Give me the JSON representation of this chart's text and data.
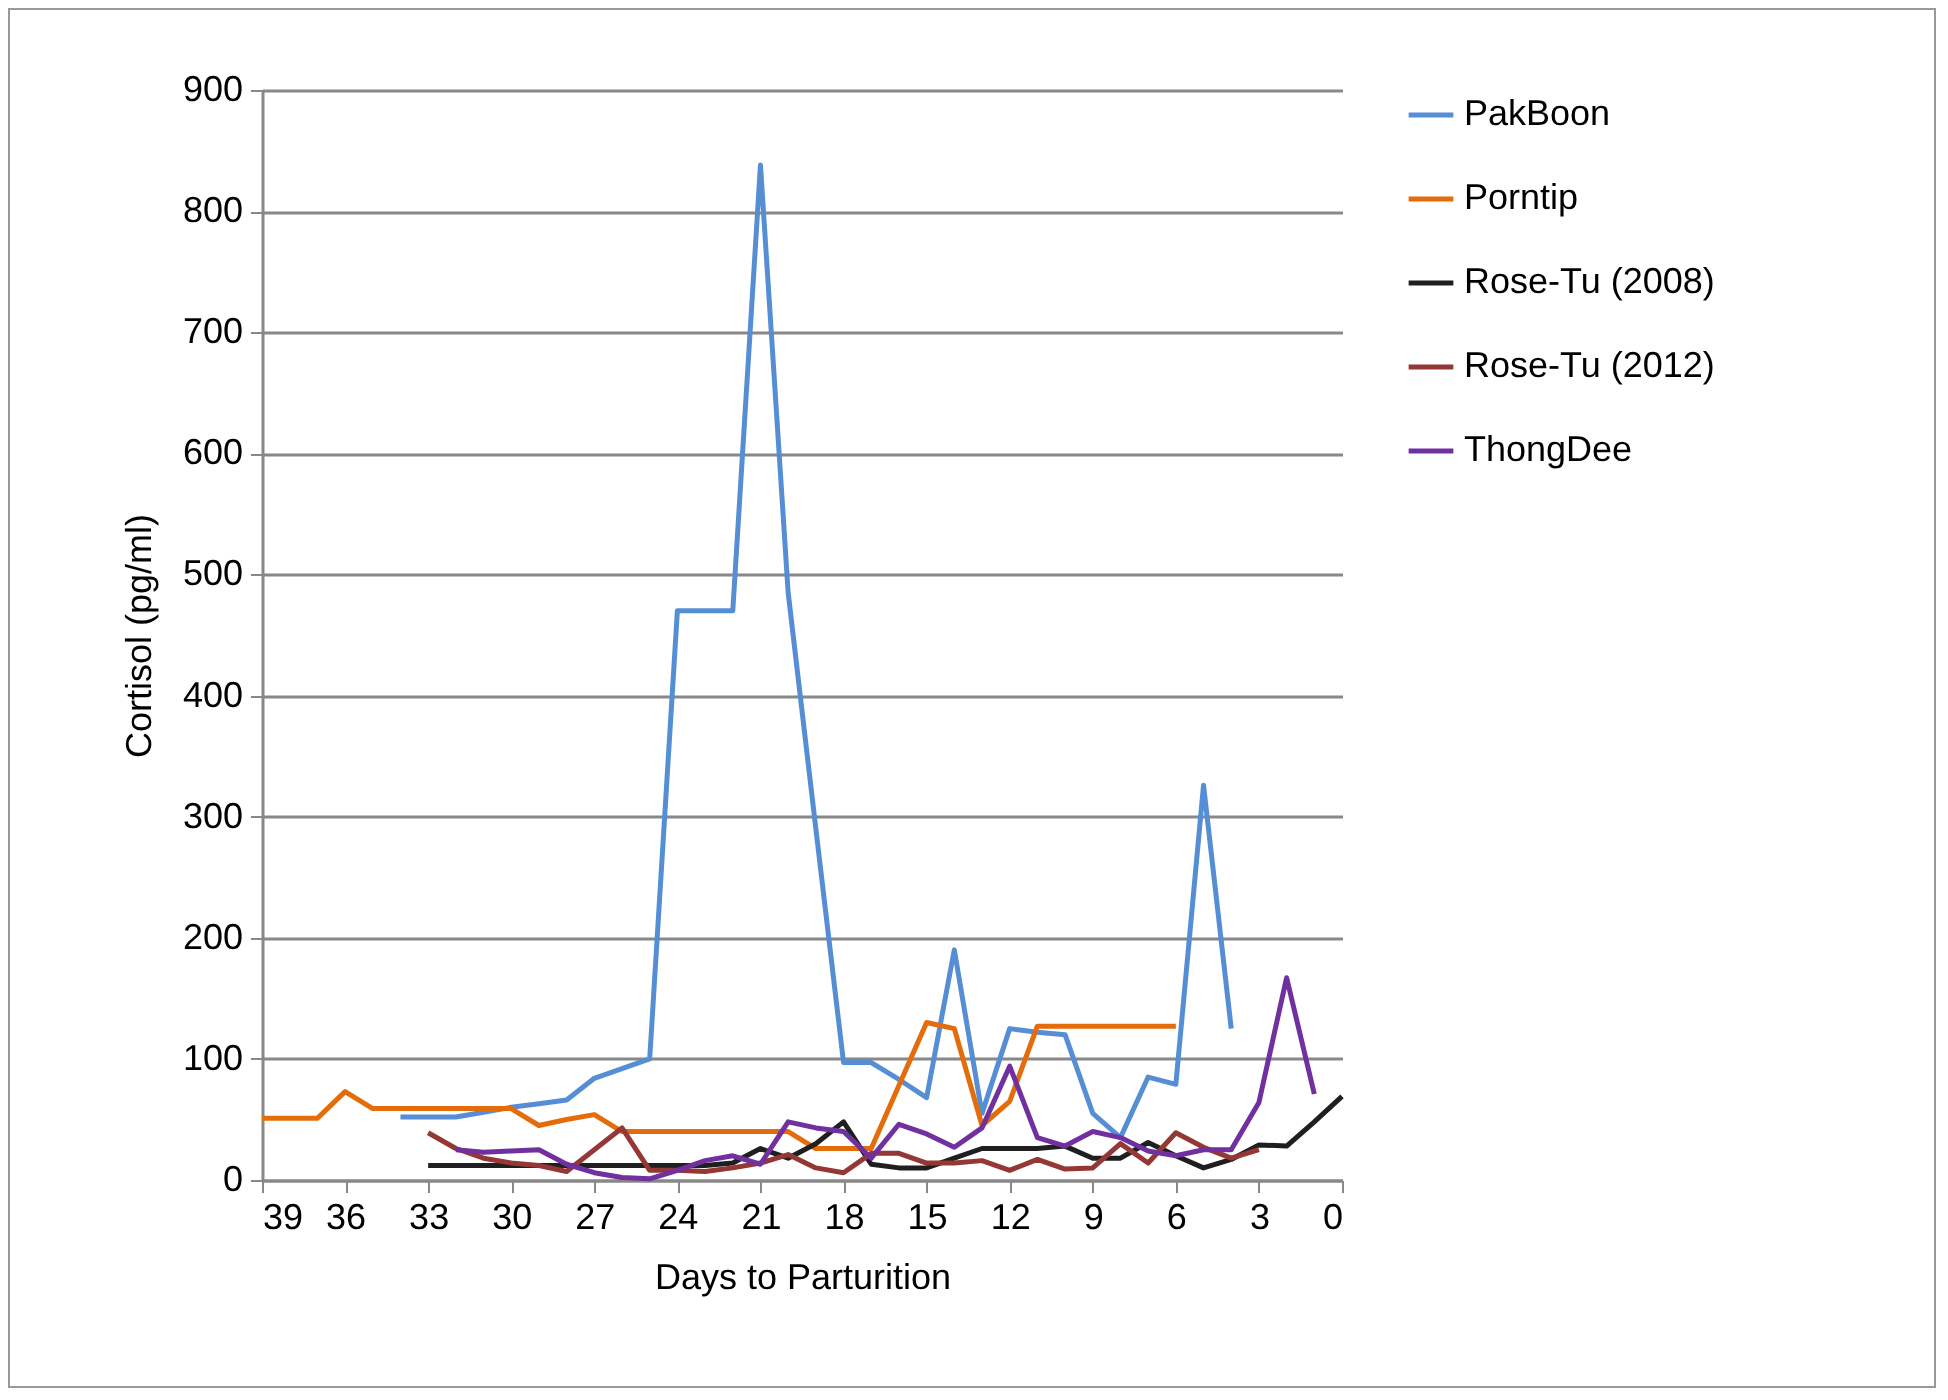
{
  "chart_data": {
    "type": "line",
    "xlabel": "Days to Parturition",
    "ylabel": "Cortisol (pg/ml)",
    "xlim": [
      39,
      0
    ],
    "xticks": [
      39,
      36,
      33,
      30,
      27,
      24,
      21,
      18,
      15,
      12,
      9,
      6,
      3,
      0
    ],
    "ylim": [
      0,
      900
    ],
    "yticks": [
      0,
      100,
      200,
      300,
      400,
      500,
      600,
      700,
      800,
      900
    ],
    "grid": "y",
    "legend": "right",
    "marker": "none",
    "line_style": "solid",
    "series": [
      {
        "name": "PakBoon",
        "color": "#558ed5",
        "x": [
          34,
          33,
          32,
          31,
          30,
          29,
          28,
          27,
          26,
          25,
          24,
          23,
          22,
          21,
          20,
          19,
          18,
          17,
          16,
          15,
          14,
          13,
          12,
          11,
          10,
          9,
          8,
          7,
          6,
          5,
          4
        ],
        "values": [
          52,
          52,
          52,
          56,
          60,
          63,
          66,
          84,
          92,
          100,
          470,
          470,
          470,
          838,
          485,
          290,
          97,
          97,
          83,
          68,
          190,
          55,
          125,
          122,
          120,
          55,
          35,
          85,
          79,
          326,
          125
        ]
      },
      {
        "name": "Porntip",
        "color": "#e46c0a",
        "x": [
          39,
          38,
          37,
          36,
          35,
          34,
          33,
          32,
          31,
          30,
          29,
          28,
          27,
          26,
          25,
          24,
          23,
          22,
          21,
          20,
          19,
          18,
          17,
          16,
          15,
          14,
          13,
          12,
          11,
          10,
          9,
          8,
          7,
          6
        ],
        "values": [
          51,
          51,
          51,
          73,
          59,
          59,
          59,
          59,
          59,
          59,
          45,
          50,
          54,
          40,
          40,
          40,
          40,
          40,
          40,
          40,
          26,
          26,
          26,
          78,
          130,
          125,
          45,
          65,
          127,
          127,
          127,
          127,
          127,
          127
        ]
      },
      {
        "name": "Rose-Tu (2008)",
        "color": "#1f1f1f",
        "x": [
          33,
          32,
          31,
          30,
          29,
          28,
          27,
          26,
          25,
          24,
          23,
          22,
          21,
          20,
          19,
          18,
          17,
          16,
          15,
          14,
          13,
          12,
          11,
          10,
          9,
          8,
          7,
          6,
          5,
          4,
          3,
          2,
          1,
          0
        ],
        "values": [
          12,
          12,
          12,
          12,
          12,
          12,
          12,
          12,
          12,
          12,
          12,
          14,
          26,
          18,
          30,
          48,
          13,
          10,
          10,
          18,
          26,
          26,
          26,
          28,
          18,
          18,
          31,
          20,
          10,
          17,
          29,
          28,
          48,
          69
        ]
      },
      {
        "name": "Rose-Tu (2012)",
        "color": "#953735",
        "x": [
          33,
          32,
          31,
          30,
          29,
          28,
          27,
          26,
          25,
          24,
          23,
          22,
          21,
          20,
          19,
          18,
          17,
          16,
          15,
          14,
          13,
          12,
          11,
          10,
          9,
          8,
          7,
          6,
          5,
          4,
          3
        ],
        "values": [
          39,
          26,
          18,
          14,
          12,
          7,
          25,
          43,
          8,
          8,
          7,
          10,
          14,
          21,
          10,
          6,
          22,
          22,
          14,
          14,
          16,
          8,
          17,
          9,
          10,
          30,
          14,
          39,
          27,
          18,
          25
        ]
      },
      {
        "name": "ThongDee",
        "color": "#7030a0",
        "x": [
          32,
          31,
          30,
          29,
          28,
          27,
          26,
          25,
          24,
          23,
          22,
          21,
          20,
          19,
          18,
          17,
          16,
          15,
          14,
          13,
          12,
          11,
          10,
          9,
          8,
          7,
          6,
          5,
          4,
          3,
          2,
          1
        ],
        "values": [
          25,
          23,
          24,
          25,
          13,
          6,
          2,
          1,
          8,
          16,
          20,
          13,
          48,
          43,
          40,
          18,
          46,
          38,
          27,
          43,
          94,
          35,
          28,
          40,
          35,
          24,
          20,
          25,
          25,
          64,
          167,
          71
        ]
      }
    ]
  }
}
